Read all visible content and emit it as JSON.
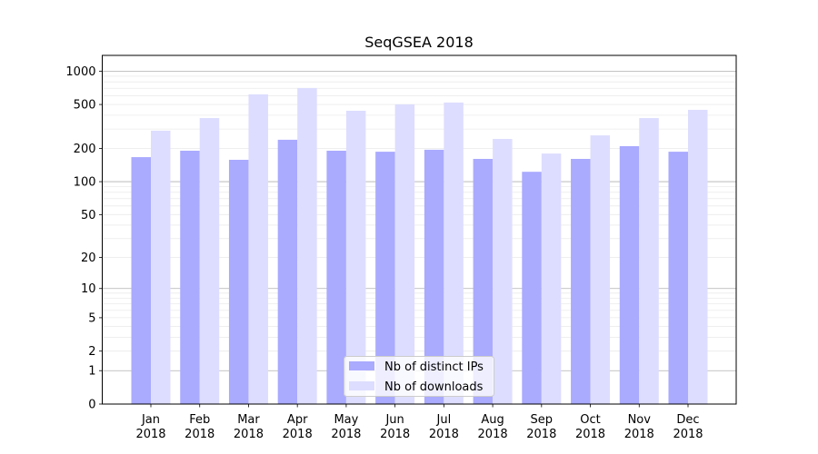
{
  "chart_data": {
    "type": "bar",
    "title": "SeqGSEA 2018",
    "xlabel": "",
    "ylabel": "",
    "yscale": "symlog (log10(v+1))",
    "ylim": [
      0,
      1387
    ],
    "grid": true,
    "legend_position": "lower-center",
    "categories": [
      "Jan\n2018",
      "Feb\n2018",
      "Mar\n2018",
      "Apr\n2018",
      "May\n2018",
      "Jun\n2018",
      "Jul\n2018",
      "Aug\n2018",
      "Sep\n2018",
      "Oct\n2018",
      "Nov\n2018",
      "Dec\n2018"
    ],
    "category_labels": [
      [
        "Jan",
        "2018"
      ],
      [
        "Feb",
        "2018"
      ],
      [
        "Mar",
        "2018"
      ],
      [
        "Apr",
        "2018"
      ],
      [
        "May",
        "2018"
      ],
      [
        "Jun",
        "2018"
      ],
      [
        "Jul",
        "2018"
      ],
      [
        "Aug",
        "2018"
      ],
      [
        "Sep",
        "2018"
      ],
      [
        "Oct",
        "2018"
      ],
      [
        "Nov",
        "2018"
      ],
      [
        "Dec",
        "2018"
      ]
    ],
    "yticks": [
      {
        "value": 0,
        "label": "0"
      },
      {
        "value": 1,
        "label": "1"
      },
      {
        "value": 2,
        "label": "2"
      },
      {
        "value": 5,
        "label": "5"
      },
      {
        "value": 10,
        "label": "10"
      },
      {
        "value": 20,
        "label": "20"
      },
      {
        "value": 50,
        "label": "50"
      },
      {
        "value": 100,
        "label": "100"
      },
      {
        "value": 200,
        "label": "200"
      },
      {
        "value": 500,
        "label": "500"
      },
      {
        "value": 1000,
        "label": "1000"
      }
    ],
    "series": [
      {
        "name": "Nb of distinct IPs",
        "color": "#aaaaff",
        "values": [
          167,
          191,
          158,
          240,
          191,
          187,
          195,
          161,
          123,
          161,
          210,
          187
        ]
      },
      {
        "name": "Nb of downloads",
        "color": "#ddddff",
        "values": [
          290,
          377,
          617,
          704,
          439,
          501,
          521,
          244,
          180,
          263,
          377,
          447
        ]
      }
    ]
  }
}
